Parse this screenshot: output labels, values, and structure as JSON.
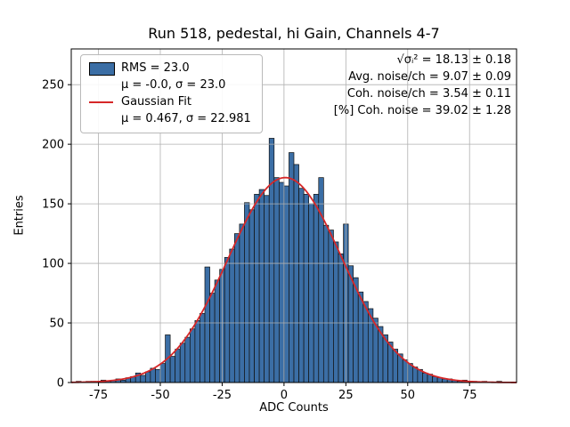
{
  "chart_data": {
    "type": "bar",
    "title": "Run 518, pedestal, hi Gain, Channels 4-7",
    "xlabel": "ADC Counts",
    "ylabel": "Entries",
    "xlim": [
      -86,
      94
    ],
    "ylim": [
      0,
      280
    ],
    "xticks": [
      -75,
      -50,
      -25,
      0,
      25,
      50,
      75
    ],
    "yticks": [
      0,
      50,
      100,
      150,
      200,
      250
    ],
    "grid": true,
    "grid_color": "#b0b0b0",
    "bar_color": "#3b6ea5",
    "bar_edge_color": "#111111",
    "bin_start": -86,
    "bin_width": 2,
    "counts": [
      0,
      1,
      0,
      1,
      1,
      0,
      2,
      1,
      2,
      3,
      2,
      4,
      5,
      8,
      6,
      9,
      12,
      11,
      16,
      40,
      22,
      28,
      33,
      38,
      45,
      52,
      58,
      97,
      75,
      86,
      95,
      105,
      112,
      125,
      133,
      151,
      145,
      158,
      162,
      157,
      205,
      172,
      168,
      165,
      193,
      183,
      163,
      158,
      150,
      158,
      172,
      132,
      128,
      118,
      108,
      133,
      98,
      88,
      76,
      68,
      62,
      54,
      47,
      40,
      34,
      28,
      24,
      19,
      16,
      13,
      11,
      8,
      7,
      5,
      4,
      3,
      3,
      2,
      1,
      2,
      1,
      1,
      0,
      1,
      0,
      0,
      1,
      0
    ],
    "fit": {
      "type": "gaussian",
      "mu": 0.467,
      "sigma": 22.981,
      "amplitude": 172,
      "color": "#d62728"
    },
    "legend": {
      "rms_label": "RMS = 23.0",
      "hist_stats": "μ = -0.0, σ = 23.0",
      "fit_label": "Gaussian Fit",
      "fit_stats": "μ = 0.467, σ = 22.981"
    },
    "annotations": [
      "√σᵢ² = 18.13 ± 0.18",
      "Avg. noise/ch = 9.07 ± 0.09",
      "Coh. noise/ch = 3.54 ± 0.11",
      "[%] Coh. noise = 39.02 ± 1.28"
    ]
  }
}
